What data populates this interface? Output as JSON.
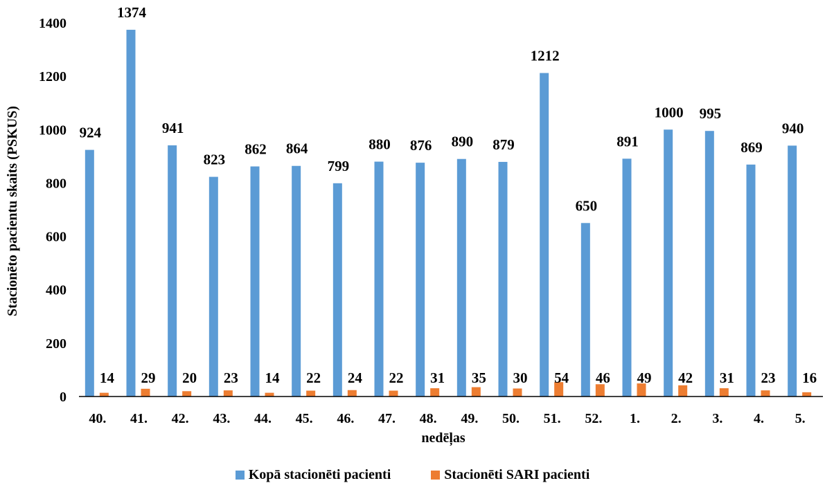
{
  "chart_data": {
    "type": "bar",
    "categories": [
      "40.",
      "41.",
      "42.",
      "43.",
      "44.",
      "45.",
      "46.",
      "47.",
      "48.",
      "49.",
      "50.",
      "51.",
      "52.",
      "1.",
      "2.",
      "3.",
      "4.",
      "5."
    ],
    "series": [
      {
        "name": "Kopā stacionēti pacienti",
        "color": "#5B9BD5",
        "values": [
          924,
          1374,
          941,
          823,
          862,
          864,
          799,
          880,
          876,
          890,
          879,
          1212,
          650,
          891,
          1000,
          995,
          869,
          940
        ]
      },
      {
        "name": "Stacionēti SARI pacienti",
        "color": "#ED7D31",
        "values": [
          14,
          29,
          20,
          23,
          14,
          22,
          24,
          22,
          31,
          35,
          30,
          54,
          46,
          49,
          42,
          31,
          23,
          16
        ]
      }
    ],
    "xlabel": "nedēļas",
    "ylabel": "Stacionēto pacientu skaits (PSKUS)",
    "ylim": [
      0,
      1400
    ],
    "yticks": [
      0,
      200,
      400,
      600,
      800,
      1000,
      1200,
      1400
    ],
    "grid": false,
    "legend_position": "bottom"
  }
}
